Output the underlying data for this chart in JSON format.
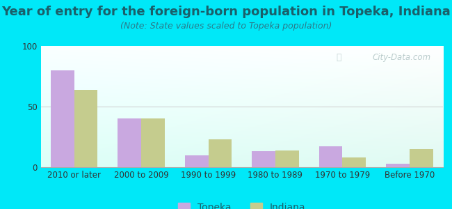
{
  "title": "Year of entry for the foreign-born population in Topeka, Indiana",
  "subtitle": "(Note: State values scaled to Topeka population)",
  "categories": [
    "2010 or later",
    "2000 to 2009",
    "1990 to 1999",
    "1980 to 1989",
    "1970 to 1979",
    "Before 1970"
  ],
  "topeka_values": [
    80,
    40,
    10,
    13,
    17,
    3
  ],
  "indiana_values": [
    64,
    40,
    23,
    14,
    8,
    15
  ],
  "topeka_color": "#c9a8e0",
  "indiana_color": "#c5cc8e",
  "background_outer": "#00e8f8",
  "ylim": [
    0,
    100
  ],
  "yticks": [
    0,
    50,
    100
  ],
  "title_fontsize": 13,
  "subtitle_fontsize": 9,
  "legend_fontsize": 10,
  "axis_label_fontsize": 8.5,
  "bar_width": 0.35,
  "watermark": "City-Data.com"
}
